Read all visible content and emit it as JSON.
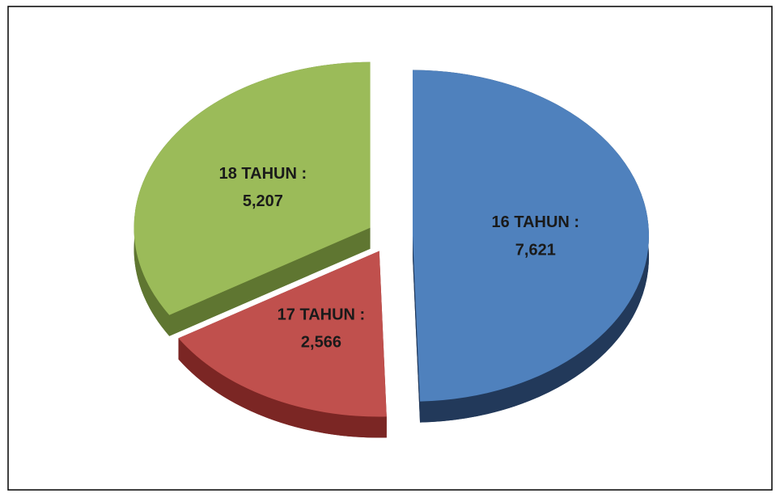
{
  "chart_data": {
    "type": "pie",
    "style": "3d-exploded",
    "categories": [
      "16 TAHUN",
      "17 TAHUN",
      "18 TAHUN"
    ],
    "label_separator": ":",
    "values": [
      7621,
      2566,
      5207
    ],
    "value_labels": [
      "7,621",
      "2,566",
      "5,207"
    ],
    "colors": [
      "#4f81bd",
      "#c0504d",
      "#9bbb59"
    ],
    "side_colors": [
      "#22395a",
      "#7b2624",
      "#5f7631"
    ]
  }
}
